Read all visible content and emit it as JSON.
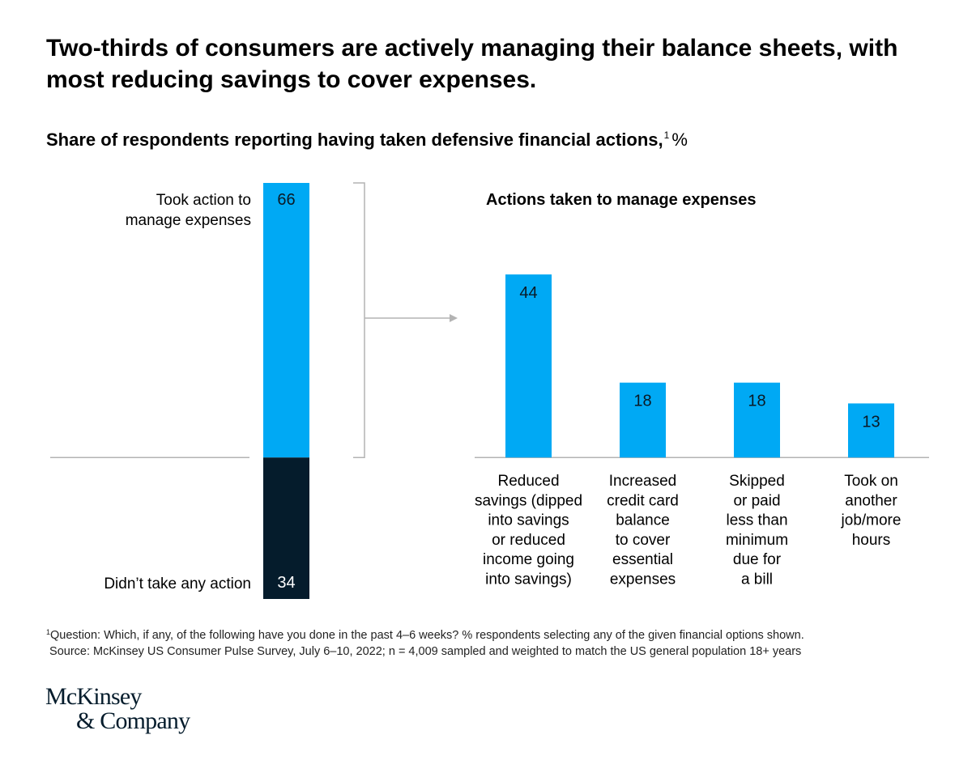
{
  "headline": "Two-thirds of consumers are actively managing their balance sheets, with most reducing savings to cover expenses.",
  "subtitle": {
    "text": "Share of respondents reporting having taken defensive financial actions,",
    "footnote_marker": "1",
    "unit": "%"
  },
  "chart_data": [
    {
      "type": "bar",
      "subtype": "stacked-100",
      "title": "",
      "categories": [
        "Took action to manage expenses",
        "Didn’t take any action"
      ],
      "label_lines": [
        [
          "Took action to",
          "manage expenses"
        ],
        [
          "Didn’t take any action"
        ]
      ],
      "values": [
        66,
        34
      ],
      "colors": [
        "#00a9f4",
        "#051c2c"
      ],
      "ylim": [
        0,
        100
      ],
      "grid": false
    },
    {
      "type": "bar",
      "title": "Actions taken to manage expenses",
      "categories": [
        "Reduced savings (dipped into savings or reduced income going into savings)",
        "Increased credit card balance to cover essential expenses",
        "Skipped or paid less than minimum due for a bill",
        "Took on another job/more hours"
      ],
      "label_lines": [
        [
          "Reduced",
          "savings (dipped",
          "into savings",
          "or reduced",
          "income going",
          "into savings)"
        ],
        [
          "Increased",
          "credit card",
          "balance",
          "to cover",
          "essential",
          "expenses"
        ],
        [
          "Skipped",
          "or paid",
          "less than",
          "minimum",
          "due for",
          "a bill"
        ],
        [
          "Took on",
          "another",
          "job/more",
          "hours"
        ]
      ],
      "values": [
        44,
        18,
        18,
        13
      ],
      "color": "#00a9f4",
      "ylim": [
        0,
        66
      ],
      "grid": false
    }
  ],
  "footnotes": {
    "marker": "1",
    "question": "Question: Which, if any, of the following have you done in the past 4–6 weeks? % respondents selecting any of the given financial options shown.",
    "source": "Source: McKinsey US Consumer Pulse Survey, July 6–10, 2022; n = 4,009 sampled and weighted to match the US general population 18+ years"
  },
  "logo": {
    "line1": "McKinsey",
    "line2": "& Company"
  }
}
